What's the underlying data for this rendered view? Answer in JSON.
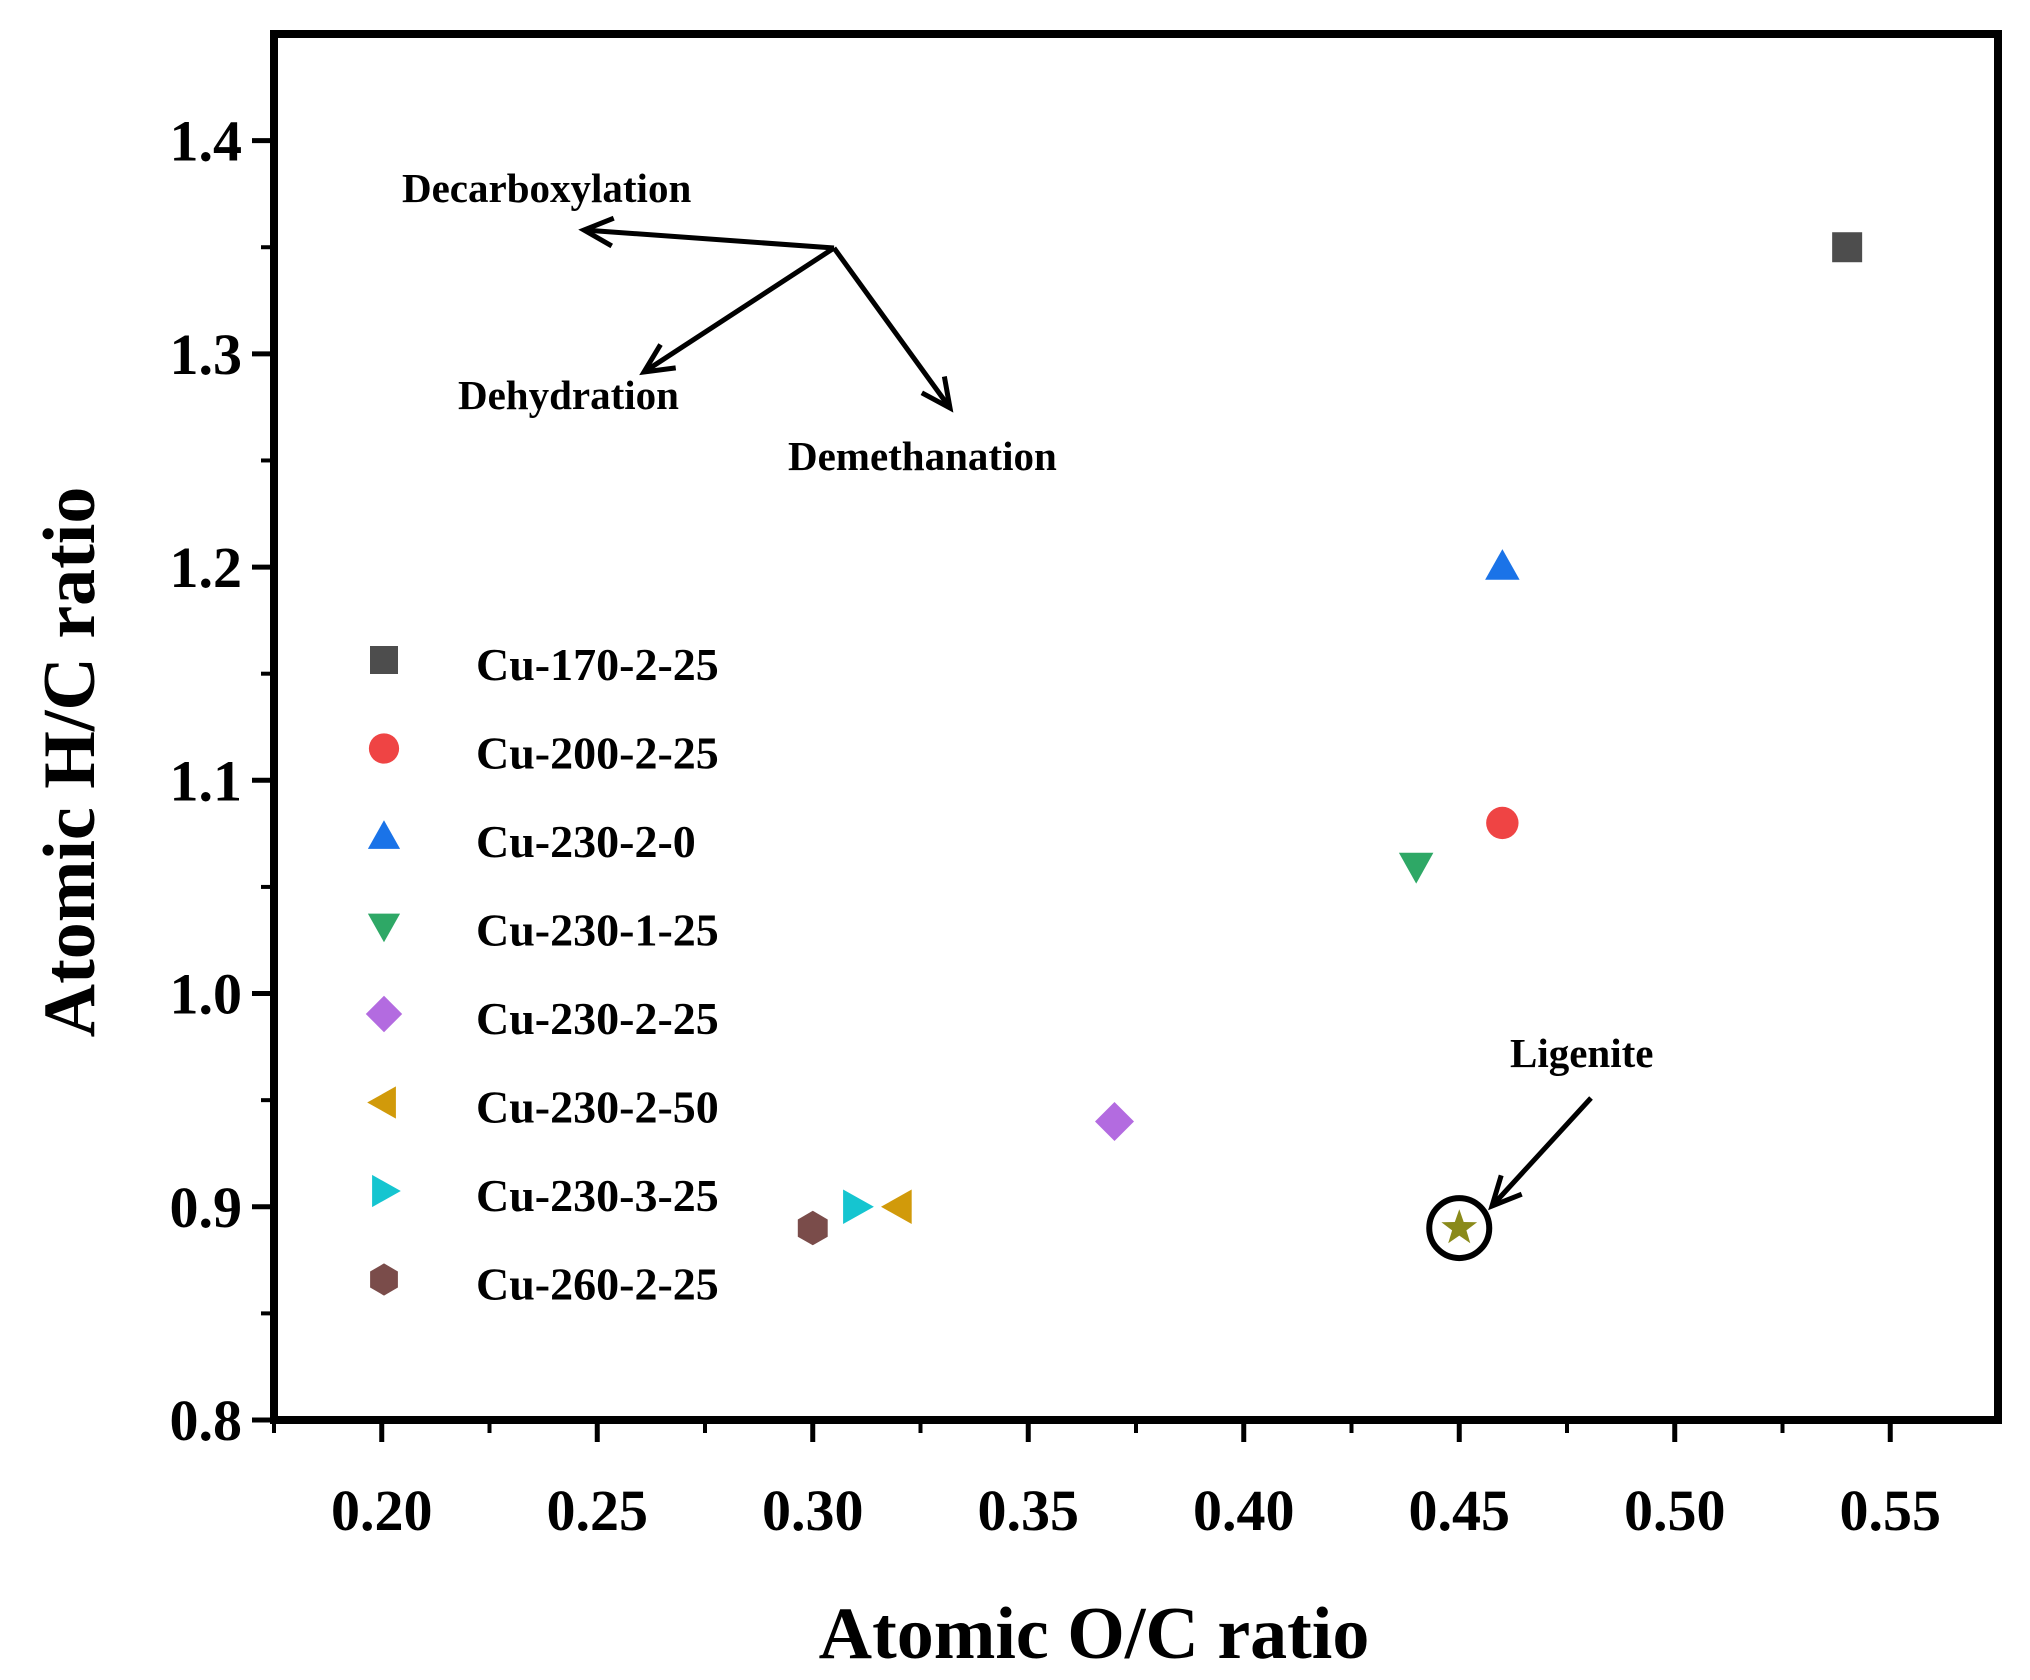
{
  "chart_data": {
    "type": "scatter",
    "title": "",
    "xlabel": "Atomic O/C ratio",
    "ylabel": "Atomic H/C ratio",
    "xlim": [
      0.175,
      0.575
    ],
    "ylim": [
      0.8,
      1.45
    ],
    "x_ticks": [
      0.2,
      0.25,
      0.3,
      0.35,
      0.4,
      0.45,
      0.5,
      0.55
    ],
    "x_tick_labels": [
      "0.20",
      "0.25",
      "0.30",
      "0.35",
      "0.40",
      "0.45",
      "0.50",
      "0.55"
    ],
    "y_ticks": [
      0.8,
      0.9,
      1.0,
      1.1,
      1.2,
      1.3,
      1.4
    ],
    "y_tick_labels": [
      "0.8",
      "0.9",
      "1.0",
      "1.1",
      "1.2",
      "1.3",
      "1.4"
    ],
    "grid": false,
    "legend_position": "left",
    "series": [
      {
        "name": "Cu-170-2-25",
        "marker": "square",
        "color": "#4d4d4d",
        "x": 0.54,
        "y": 1.35
      },
      {
        "name": "Cu-200-2-25",
        "marker": "circle",
        "color": "#ef4444",
        "x": 0.46,
        "y": 1.08
      },
      {
        "name": "Cu-230-2-0",
        "marker": "triangle-up",
        "color": "#1a73e8",
        "x": 0.46,
        "y": 1.2
      },
      {
        "name": "Cu-230-1-25",
        "marker": "triangle-down",
        "color": "#2ea866",
        "x": 0.44,
        "y": 1.06
      },
      {
        "name": "Cu-230-2-25",
        "marker": "diamond",
        "color": "#b36be0",
        "x": 0.37,
        "y": 0.94
      },
      {
        "name": "Cu-230-2-50",
        "marker": "triangle-left",
        "color": "#d19a0a",
        "x": 0.32,
        "y": 0.9
      },
      {
        "name": "Cu-230-3-25",
        "marker": "triangle-right",
        "color": "#15c5d0",
        "x": 0.31,
        "y": 0.9
      },
      {
        "name": "Cu-260-2-25",
        "marker": "hexagon",
        "color": "#7a4c4a",
        "x": 0.3,
        "y": 0.89
      }
    ],
    "annotations": [
      {
        "id": "decarboxylation",
        "text": "Decarboxylation"
      },
      {
        "id": "dehydration",
        "text": "Dehydration"
      },
      {
        "id": "demethanation",
        "text": "Demethanation"
      },
      {
        "id": "ligenite",
        "text": "Ligenite",
        "marker": "star",
        "color": "#8a8a1a",
        "x": 0.45,
        "y": 0.89
      }
    ]
  }
}
